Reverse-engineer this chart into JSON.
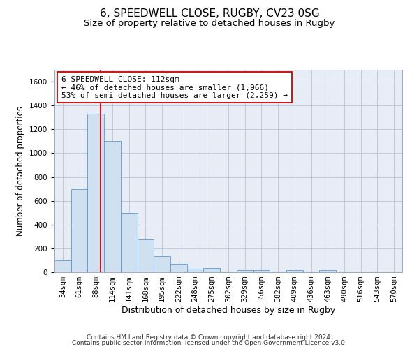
{
  "title1": "6, SPEEDWELL CLOSE, RUGBY, CV23 0SG",
  "title2": "Size of property relative to detached houses in Rugby",
  "xlabel": "Distribution of detached houses by size in Rugby",
  "ylabel": "Number of detached properties",
  "footer1": "Contains HM Land Registry data © Crown copyright and database right 2024.",
  "footer2": "Contains public sector information licensed under the Open Government Licence v3.0.",
  "categories": [
    "34sqm",
    "61sqm",
    "88sqm",
    "114sqm",
    "141sqm",
    "168sqm",
    "195sqm",
    "222sqm",
    "248sqm",
    "275sqm",
    "302sqm",
    "329sqm",
    "356sqm",
    "382sqm",
    "409sqm",
    "436sqm",
    "463sqm",
    "490sqm",
    "516sqm",
    "543sqm",
    "570sqm"
  ],
  "values": [
    100,
    700,
    1330,
    1100,
    500,
    275,
    135,
    70,
    30,
    35,
    0,
    15,
    15,
    0,
    15,
    0,
    15,
    0,
    0,
    0,
    0
  ],
  "bar_color": "#cfe0f0",
  "bar_edge_color": "#5b9bd5",
  "bar_width": 1.0,
  "vline_x": 2.78,
  "vline_color": "#cc0000",
  "ylim": [
    0,
    1700
  ],
  "yticks": [
    0,
    200,
    400,
    600,
    800,
    1000,
    1200,
    1400,
    1600
  ],
  "annotation_text": "6 SPEEDWELL CLOSE: 112sqm\n← 46% of detached houses are smaller (1,966)\n53% of semi-detached houses are larger (2,259) →",
  "bg_color": "#ffffff",
  "plot_bg_color": "#e8edf5",
  "grid_color": "#b8c4d8",
  "title1_fontsize": 11,
  "title2_fontsize": 9.5,
  "tick_fontsize": 7.5,
  "ylabel_fontsize": 8.5,
  "xlabel_fontsize": 9,
  "annotation_fontsize": 8,
  "footer_fontsize": 6.5
}
